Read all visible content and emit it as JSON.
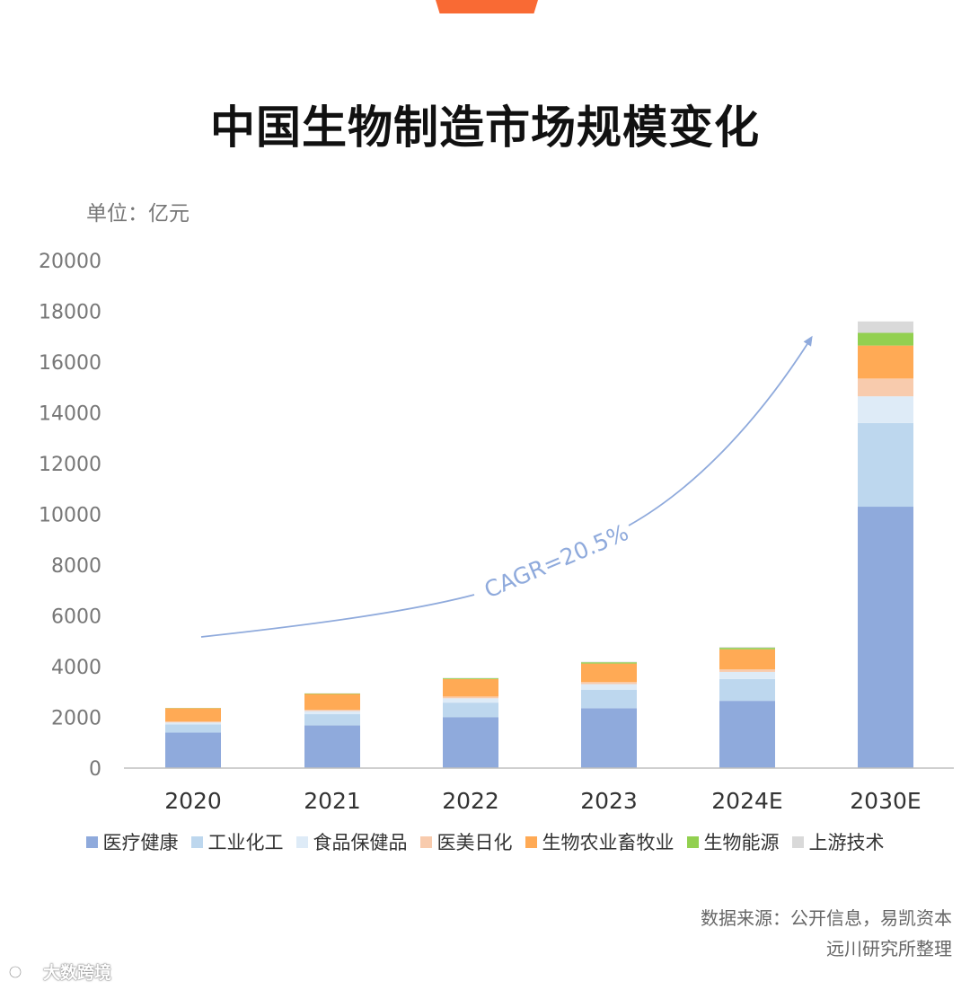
{
  "header": {
    "title": "中国生物制造市场规模变化",
    "unit": "单位：亿元"
  },
  "footer": {
    "source_line1": "数据来源：公开信息，易凯资本",
    "source_line2": "远川研究所整理",
    "watermark": "大数跨境"
  },
  "colors": {
    "accent": "#f96a34"
  },
  "chart_data": {
    "type": "bar",
    "stacked": true,
    "categories": [
      "2020",
      "2021",
      "2022",
      "2023",
      "2024E",
      "2030E"
    ],
    "ylim": [
      0,
      20000
    ],
    "yticks": [
      0,
      2000,
      4000,
      6000,
      8000,
      10000,
      12000,
      14000,
      16000,
      18000,
      20000
    ],
    "legend_position": "bottom",
    "grid": false,
    "annotation": "CAGR=20.5%",
    "series": [
      {
        "name": "医疗健康",
        "color": "#8faadc",
        "values": [
          1400,
          1680,
          2000,
          2360,
          2650,
          10300
        ]
      },
      {
        "name": "工业化工",
        "color": "#bdd7ee",
        "values": [
          320,
          450,
          580,
          730,
          860,
          3300
        ]
      },
      {
        "name": "食品保健品",
        "color": "#deebf7",
        "values": [
          80,
          120,
          170,
          220,
          280,
          1050
        ]
      },
      {
        "name": "医美日化",
        "color": "#f8cbad",
        "values": [
          40,
          50,
          70,
          80,
          100,
          700
        ]
      },
      {
        "name": "生物农业畜牧业",
        "color": "#ffaa55",
        "values": [
          520,
          620,
          690,
          730,
          790,
          1300
        ]
      },
      {
        "name": "生物能源",
        "color": "#92d050",
        "values": [
          10,
          20,
          30,
          50,
          60,
          500
        ]
      },
      {
        "name": "上游技术",
        "color": "#d9d9d9",
        "values": [
          5,
          10,
          15,
          20,
          30,
          450
        ]
      }
    ]
  }
}
